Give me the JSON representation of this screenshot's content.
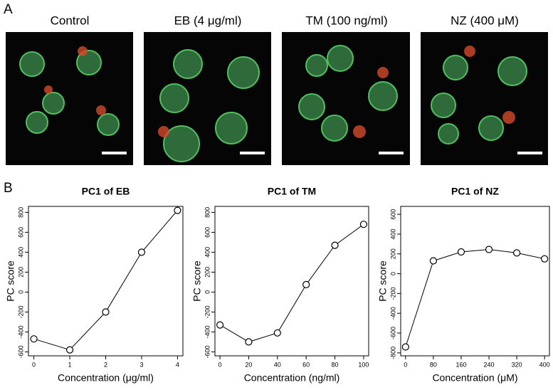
{
  "panel_labels": [
    "A",
    "B"
  ],
  "images": [
    {
      "title": "Control"
    },
    {
      "title": "EB (4 μg/ml)"
    },
    {
      "title": "TM (100 ng/ml)"
    },
    {
      "title": "NZ (400 μM)"
    }
  ],
  "chart_data": [
    {
      "type": "line",
      "title": "PC1 of EB",
      "x_label": "Concentration (μg/ml)",
      "y_label": "PC score",
      "color": "#000000",
      "x": [
        0,
        1,
        2,
        3,
        4
      ],
      "values": [
        -470,
        -580,
        -200,
        400,
        820
      ],
      "xlim": [
        -0.15,
        4.15
      ],
      "ylim": [
        -640,
        860
      ],
      "xticks": [
        0,
        1,
        2,
        3,
        4
      ],
      "yticks": [
        -600,
        -400,
        -200,
        0,
        200,
        400,
        600,
        800
      ]
    },
    {
      "type": "line",
      "title": "PC1 of TM",
      "x_label": "Concentration (ng/ml)",
      "y_label": "PC score",
      "color": "#000000",
      "x": [
        0,
        20,
        40,
        60,
        80,
        100
      ],
      "values": [
        -330,
        -500,
        -410,
        75,
        470,
        680
      ],
      "xlim": [
        -3.5,
        103.5
      ],
      "ylim": [
        -640,
        860
      ],
      "xticks": [
        0,
        20,
        40,
        60,
        80,
        100
      ],
      "yticks": [
        -600,
        -400,
        -200,
        0,
        200,
        400,
        600,
        800
      ]
    },
    {
      "type": "line",
      "title": "PC1 of NZ",
      "x_label": "Concentration (μM)",
      "y_label": "PC score",
      "color": "#000000",
      "x": [
        0,
        80,
        160,
        240,
        320,
        400
      ],
      "values": [
        -740,
        130,
        220,
        245,
        210,
        150
      ],
      "xlim": [
        -14,
        414
      ],
      "ylim": [
        -830,
        680
      ],
      "xticks": [
        0,
        80,
        160,
        240,
        320,
        400
      ],
      "yticks": [
        -800,
        -600,
        -400,
        -200,
        0,
        200,
        400,
        600
      ]
    }
  ]
}
